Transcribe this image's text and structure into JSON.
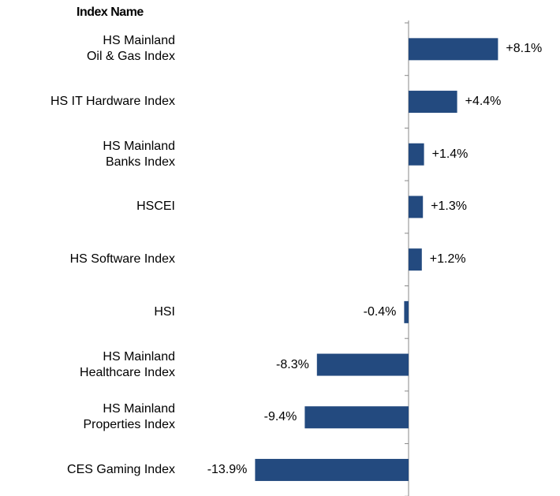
{
  "chart_data": {
    "type": "bar",
    "orientation": "horizontal",
    "color": "#234a7f",
    "category_header": "Index Name",
    "categories": [
      "HS Mainland\nOil & Gas Index",
      "HS IT Hardware Index",
      "HS Mainland\nBanks Index",
      "HSCEI",
      "HS Software Index",
      "HSI",
      "HS Mainland\nHealthcare Index",
      "HS Mainland\nProperties Index",
      "CES Gaming Index"
    ],
    "values": [
      8.1,
      4.4,
      1.4,
      1.3,
      1.2,
      -0.4,
      -8.3,
      -9.4,
      -13.9
    ],
    "value_labels": [
      "+8.1%",
      "+4.4%",
      "+1.4%",
      "+1.3%",
      "+1.2%",
      "-0.4%",
      "-8.3%",
      "-9.4%",
      "-13.9%"
    ]
  }
}
